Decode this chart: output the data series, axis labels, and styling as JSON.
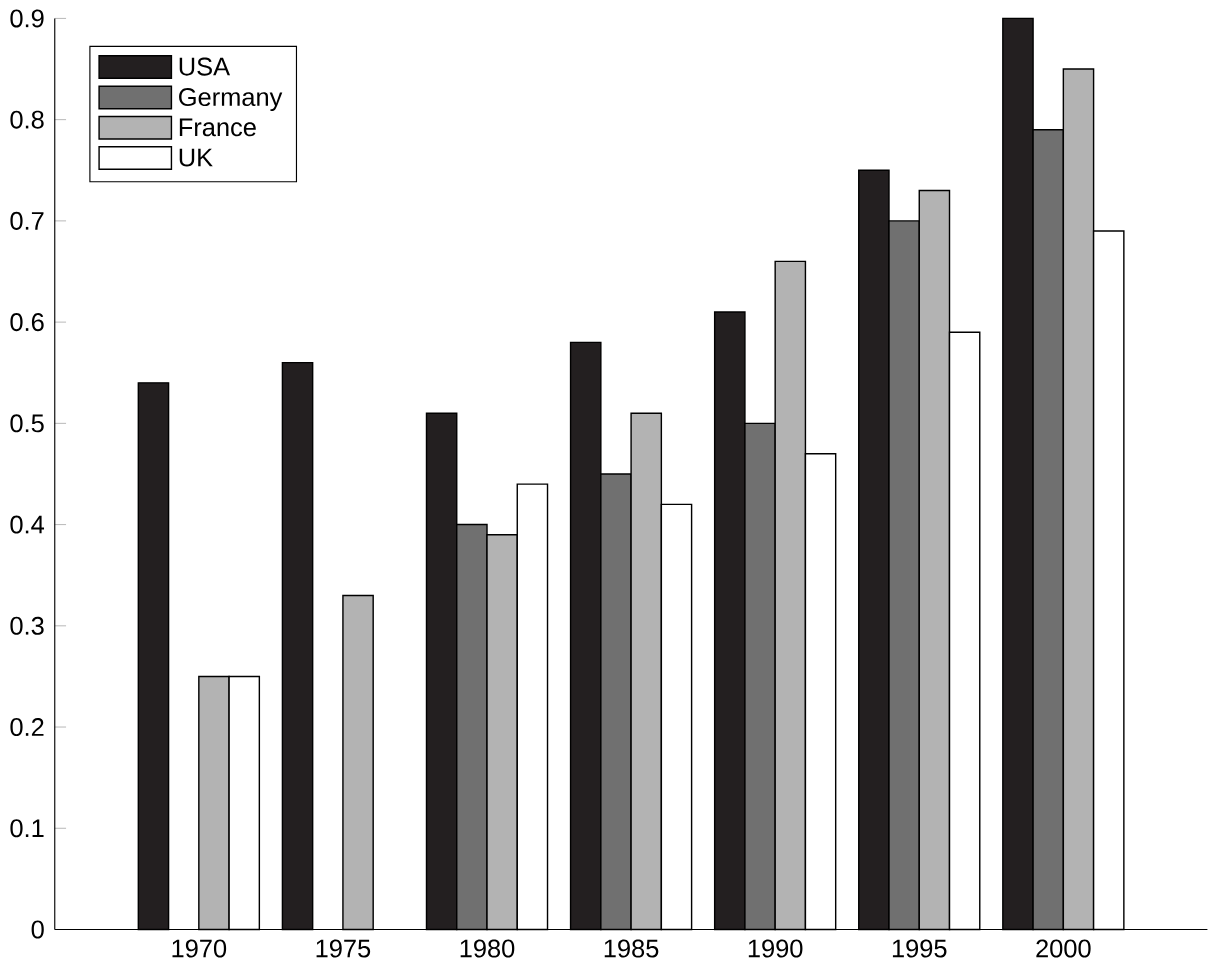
{
  "chart_data": {
    "type": "bar",
    "categories": [
      "1970",
      "1975",
      "1980",
      "1985",
      "1990",
      "1995",
      "2000"
    ],
    "series": [
      {
        "name": "USA",
        "color": "#231f20",
        "values": [
          0.54,
          0.56,
          0.51,
          0.58,
          0.61,
          0.75,
          0.9
        ]
      },
      {
        "name": "Germany",
        "color": "#707070",
        "values": [
          null,
          null,
          0.4,
          0.45,
          0.5,
          0.7,
          0.79
        ]
      },
      {
        "name": "France",
        "color": "#b3b3b3",
        "values": [
          0.25,
          0.33,
          0.39,
          0.51,
          0.66,
          0.73,
          0.85
        ]
      },
      {
        "name": "UK",
        "color": "#ffffff",
        "values": [
          0.25,
          null,
          0.44,
          0.42,
          0.47,
          0.59,
          0.69
        ]
      }
    ],
    "ylim": [
      0,
      0.9
    ],
    "yticks": [
      0,
      0.1,
      0.2,
      0.3,
      0.4,
      0.5,
      0.6,
      0.7,
      0.8,
      0.9
    ],
    "legend": "top left",
    "grid": false
  }
}
